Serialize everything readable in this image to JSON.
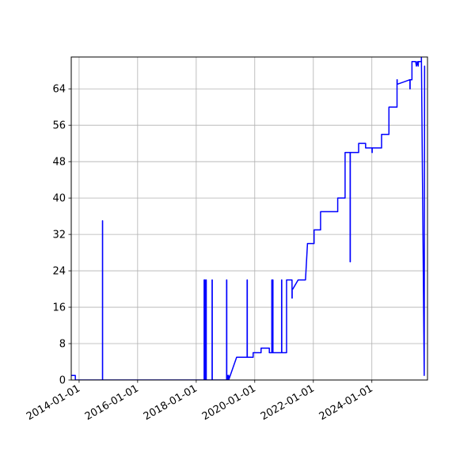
{
  "chart_data": {
    "type": "line",
    "title": "",
    "xlabel": "",
    "ylabel": "",
    "grid": true,
    "line_color": "#0000ff",
    "xlim": [
      "2013-09-25",
      "2025-11-25"
    ],
    "ylim": [
      0,
      71
    ],
    "x_ticks": [
      "2014-01-01",
      "2016-01-01",
      "2018-01-01",
      "2020-01-01",
      "2022-01-01",
      "2024-01-01"
    ],
    "y_ticks": [
      0,
      8,
      16,
      24,
      32,
      40,
      48,
      56,
      64
    ],
    "series": [
      {
        "x": [
          "2013-09-25",
          "2013-11-15",
          "2013-11-15",
          "2014-01-05",
          "2014-10-20",
          "2014-10-20",
          "2014-10-21",
          "2014-10-21",
          "2018-04-10",
          "2018-04-10",
          "2018-04-14",
          "2018-04-14",
          "2018-04-18",
          "2018-04-18",
          "2018-05-02",
          "2018-05-02",
          "2018-05-06",
          "2018-05-06",
          "2018-07-18",
          "2018-07-18",
          "2018-07-20",
          "2018-07-20",
          "2019-01-15",
          "2019-01-15",
          "2019-01-17",
          "2019-01-17",
          "2019-01-30",
          "2019-01-30",
          "2019-02-10",
          "2019-02-10",
          "2019-05-20",
          "2019-05-20",
          "2019-09-28",
          "2019-09-28",
          "2019-09-30",
          "2019-09-30",
          "2019-12-12",
          "2019-12-12",
          "2020-03-20",
          "2020-03-20",
          "2020-07-01",
          "2020-07-01",
          "2020-08-01",
          "2020-08-01",
          "2020-08-03",
          "2020-08-03",
          "2020-08-13",
          "2020-08-13",
          "2020-08-15",
          "2020-08-15",
          "2020-12-01",
          "2020-12-01",
          "2020-12-03",
          "2020-12-03",
          "2021-02-01",
          "2021-02-01",
          "2021-04-10",
          "2021-04-10",
          "2021-04-12",
          "2021-04-12",
          "2021-04-20",
          "2021-04-20",
          "2021-06-25",
          "2021-06-25",
          "2021-09-25",
          "2021-10-20",
          "2022-01-10",
          "2022-01-10",
          "2022-04-01",
          "2022-04-01",
          "2022-11-01",
          "2022-11-01",
          "2023-02-01",
          "2023-02-01",
          "2023-04-05",
          "2023-04-05",
          "2023-04-07",
          "2023-04-07",
          "2023-07-20",
          "2023-07-20",
          "2023-10-15",
          "2023-10-15",
          "2024-01-03",
          "2024-01-03",
          "2024-01-05",
          "2024-01-05",
          "2024-05-01",
          "2024-05-01",
          "2024-08-01",
          "2024-08-01",
          "2024-11-10",
          "2024-11-10",
          "2024-11-12",
          "2024-11-12",
          "2025-04-20",
          "2025-04-20",
          "2025-04-22",
          "2025-04-22",
          "2025-05-15",
          "2025-05-15",
          "2025-06-30",
          "2025-07-10",
          "2025-07-20",
          "2025-08-01",
          "2025-08-05",
          "2025-09-10",
          "2025-09-10",
          "2025-10-15",
          "2025-10-20",
          "2025-10-25"
        ],
        "y": [
          1,
          1,
          0,
          0,
          0,
          35,
          35,
          0,
          0,
          22,
          22,
          0,
          22,
          0,
          22,
          0,
          22,
          0,
          0,
          22,
          22,
          0,
          0,
          22,
          22,
          0,
          0,
          1,
          1,
          0,
          5,
          5,
          5,
          22,
          22,
          5,
          5,
          6,
          6,
          7,
          7,
          6,
          6,
          22,
          22,
          6,
          6,
          22,
          22,
          6,
          6,
          22,
          22,
          6,
          6,
          22,
          22,
          18,
          18,
          20,
          20,
          20,
          22,
          22,
          22,
          30,
          30,
          33,
          33,
          37,
          37,
          40,
          40,
          50,
          50,
          26,
          26,
          50,
          50,
          52,
          52,
          51,
          51,
          50,
          50,
          51,
          51,
          54,
          54,
          60,
          60,
          66,
          66,
          65,
          66,
          64,
          64,
          66,
          66,
          70,
          70,
          69,
          70,
          69,
          70,
          70,
          71,
          1,
          69,
          69
        ]
      }
    ]
  }
}
